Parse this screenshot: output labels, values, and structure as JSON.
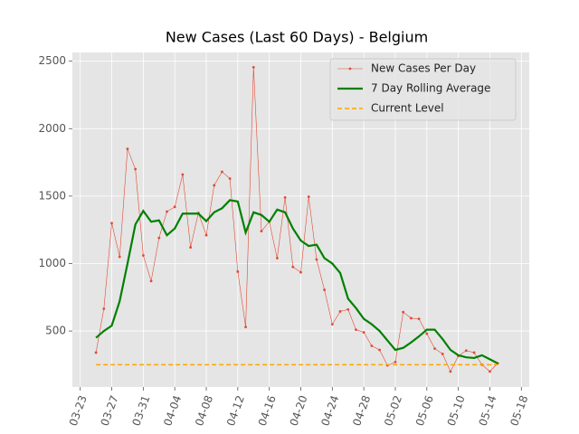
{
  "chart_data": {
    "type": "line",
    "title": "New Cases (Last 60 Days) - Belgium",
    "x": [
      "03-25",
      "03-26",
      "03-27",
      "03-28",
      "03-29",
      "03-30",
      "03-31",
      "04-01",
      "04-02",
      "04-03",
      "04-04",
      "04-05",
      "04-06",
      "04-07",
      "04-08",
      "04-09",
      "04-10",
      "04-11",
      "04-12",
      "04-13",
      "04-14",
      "04-15",
      "04-16",
      "04-17",
      "04-18",
      "04-19",
      "04-20",
      "04-21",
      "04-22",
      "04-23",
      "04-24",
      "04-25",
      "04-26",
      "04-27",
      "04-28",
      "04-29",
      "04-30",
      "05-01",
      "05-02",
      "05-03",
      "05-04",
      "05-05",
      "05-06",
      "05-07",
      "05-08",
      "05-09",
      "05-10",
      "05-11",
      "05-12",
      "05-13",
      "05-14",
      "05-15"
    ],
    "xlim": [
      "03-22",
      "05-19"
    ],
    "xticks": [
      "03-23",
      "03-27",
      "03-31",
      "04-04",
      "04-08",
      "04-12",
      "04-16",
      "04-20",
      "04-24",
      "04-28",
      "05-02",
      "05-06",
      "05-10",
      "05-14",
      "05-18"
    ],
    "ylim": [
      85,
      2565
    ],
    "yticks": [
      500,
      1000,
      1500,
      2000,
      2500
    ],
    "grid": true,
    "legend": "upper right",
    "series": [
      {
        "name": "New Cases Per Day",
        "color": "#e24a33",
        "values": [
          340,
          665,
          1300,
          1050,
          1850,
          1700,
          1060,
          870,
          1190,
          1385,
          1420,
          1660,
          1120,
          1375,
          1210,
          1580,
          1680,
          1630,
          940,
          530,
          2455,
          1240,
          1310,
          1040,
          1490,
          975,
          935,
          1495,
          1030,
          805,
          550,
          645,
          660,
          510,
          490,
          390,
          360,
          245,
          270,
          640,
          595,
          590,
          480,
          370,
          330,
          200,
          315,
          355,
          340,
          250,
          200,
          260
        ]
      },
      {
        "name": "7 Day Rolling Average",
        "color": "green",
        "values": [
          450,
          500,
          540,
          720,
          1000,
          1290,
          1390,
          1310,
          1320,
          1210,
          1260,
          1370,
          1370,
          1370,
          1315,
          1380,
          1410,
          1470,
          1460,
          1230,
          1380,
          1360,
          1310,
          1400,
          1380,
          1260,
          1170,
          1130,
          1140,
          1040,
          1000,
          930,
          740,
          670,
          590,
          550,
          500,
          430,
          360,
          375,
          415,
          460,
          510,
          510,
          440,
          360,
          320,
          305,
          300,
          320,
          290,
          260
        ]
      },
      {
        "name": "Current Level",
        "color": "orange",
        "linestyle": "dashed",
        "value": 250
      }
    ]
  }
}
